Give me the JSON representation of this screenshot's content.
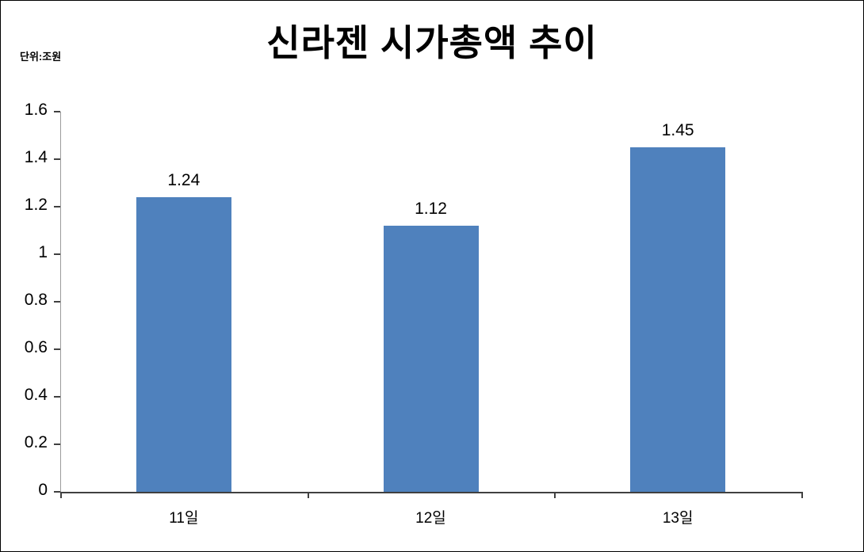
{
  "chart_data": {
    "type": "bar",
    "title": "신라젠 시가총액 추이",
    "unit_label": "단위:조원",
    "categories": [
      "11일",
      "12일",
      "13일"
    ],
    "values": [
      1.24,
      1.12,
      1.45
    ],
    "data_labels": [
      "1.24",
      "1.12",
      "1.45"
    ],
    "ylim": [
      0,
      1.6
    ],
    "yticks": [
      0,
      0.2,
      0.4,
      0.6,
      0.8,
      1,
      1.2,
      1.4,
      1.6
    ],
    "ytick_labels": [
      "0",
      "0.2",
      "0.4",
      "0.6",
      "0.8",
      "1",
      "1.2",
      "1.4",
      "1.6"
    ],
    "bar_color": "#4f81bd",
    "axis_color": "#404040",
    "grid": false,
    "legend": false,
    "legend_position": "none"
  }
}
